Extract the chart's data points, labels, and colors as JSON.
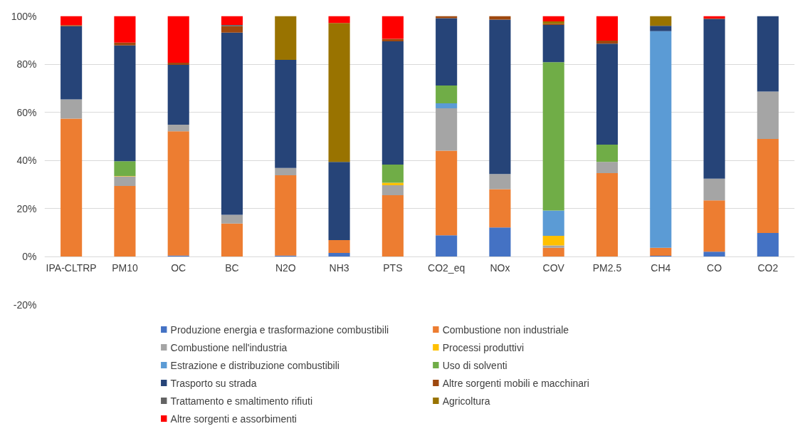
{
  "chart_data": {
    "type": "bar",
    "stacked": true,
    "categories": [
      "IPA-CLTRP",
      "PM10",
      "OC",
      "BC",
      "N2O",
      "NH3",
      "PTS",
      "CO2_eq",
      "NOx",
      "COV",
      "PM2.5",
      "CH4",
      "CO",
      "CO2"
    ],
    "series": [
      {
        "name": "Produzione energia e trasformazione combustibili",
        "color": "#4472c4",
        "values": [
          null,
          null,
          0.4,
          null,
          0.4,
          1.5,
          null,
          8.8,
          12.1,
          null,
          null,
          0.3,
          2,
          9.8
        ]
      },
      {
        "name": "Combustione non industriale",
        "color": "#ed7d31",
        "values": [
          57.3,
          29.3,
          51.7,
          13.7,
          33.4,
          5.3,
          25.5,
          35.2,
          15.9,
          3.6,
          34.7,
          3.3,
          21.3,
          39.1
        ]
      },
      {
        "name": "Combustione nell'industria",
        "color": "#a5a5a5",
        "values": [
          8,
          4,
          2.7,
          3.6,
          3,
          null,
          4.1,
          17.6,
          6.3,
          1,
          4.6,
          null,
          9.1,
          19.7
        ]
      },
      {
        "name": "Processi produttivi",
        "color": "#ffc000",
        "values": [
          null,
          0.2,
          null,
          null,
          null,
          null,
          1.1,
          null,
          null,
          4,
          null,
          null,
          null,
          null
        ]
      },
      {
        "name": "Estrazione e distribuzione combustibili",
        "color": "#5b9bd5",
        "values": [
          null,
          null,
          null,
          null,
          null,
          null,
          null,
          2.1,
          null,
          10.5,
          null,
          90.1,
          null,
          null
        ]
      },
      {
        "name": "Uso di solventi",
        "color": "#70ad47",
        "values": [
          null,
          6.1,
          null,
          null,
          null,
          null,
          7.5,
          7.4,
          null,
          61.7,
          7.2,
          null,
          null,
          null
        ]
      },
      {
        "name": "Trasporto su strada",
        "color": "#264478",
        "values": [
          30.5,
          48.2,
          24.9,
          75.8,
          45,
          32.5,
          51.3,
          28,
          64.2,
          15.5,
          42,
          2.2,
          66.4,
          31.4
        ]
      },
      {
        "name": "Altre sorgenti mobili e macchinari",
        "color": "#9e480e",
        "values": [
          0.4,
          1.2,
          0.9,
          2.7,
          null,
          null,
          1,
          0.9,
          1.5,
          0.5,
          1.3,
          null,
          0.2,
          null
        ]
      },
      {
        "name": "Trattamento e smaltimento rifiuti",
        "color": "#636363",
        "values": [
          null,
          null,
          null,
          0.5,
          null,
          null,
          null,
          null,
          null,
          null,
          null,
          null,
          null,
          null
        ]
      },
      {
        "name": "Agricoltura",
        "color": "#997300",
        "values": [
          null,
          null,
          null,
          null,
          18.2,
          57.8,
          null,
          null,
          null,
          1,
          null,
          4.1,
          null,
          null
        ]
      },
      {
        "name": "Altre sorgenti e assorbimenti",
        "color": "#ff0000",
        "values": [
          3.8,
          11,
          19.4,
          3.7,
          null,
          2.9,
          9.5,
          null,
          null,
          2.2,
          10.2,
          null,
          1,
          null
        ]
      }
    ],
    "ylim": [
      -20,
      100
    ],
    "yticks": [
      {
        "value": -20,
        "label": "-20%"
      },
      {
        "value": 0,
        "label": "0%"
      },
      {
        "value": 20,
        "label": "20%"
      },
      {
        "value": 40,
        "label": "40%"
      },
      {
        "value": 60,
        "label": "60%"
      },
      {
        "value": 80,
        "label": "80%"
      },
      {
        "value": 100,
        "label": "100%"
      }
    ],
    "grid": "y",
    "legend": "bottom"
  }
}
